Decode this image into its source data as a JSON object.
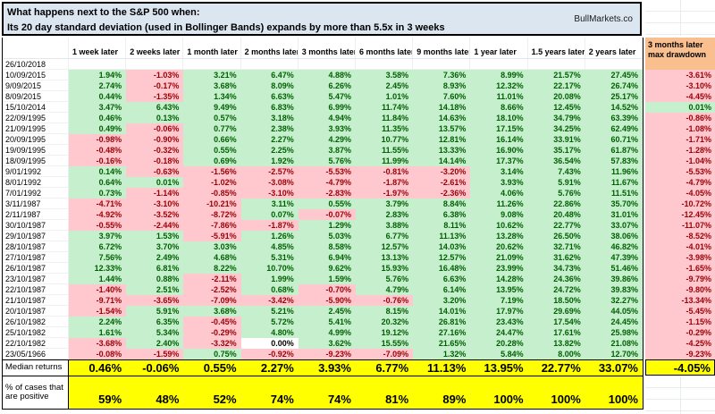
{
  "title": {
    "line1": "What happens next to the S&P 500 when:",
    "line2": "Its 20 day standard deviation (used in Bollinger Bands) expands by more than 5.5x in 3 weeks",
    "brand": "BullMarkets.co"
  },
  "columns": [
    "1 week later",
    "2 weeks later",
    "1 month later",
    "2 months later",
    "3 months later",
    "6 months later",
    "9 months later",
    "1 year later",
    "1.5 years later",
    "2 years later"
  ],
  "drawdown": {
    "header_line1": "3 months later",
    "header_line2": "max drawdown"
  },
  "rows": [
    {
      "date": "26/10/2018",
      "values": [
        "",
        "",
        "",
        "",
        "",
        "",
        "",
        "",
        "",
        ""
      ],
      "drawdown": ""
    },
    {
      "date": "10/09/2015",
      "values": [
        "1.94%",
        "-1.03%",
        "3.21%",
        "6.47%",
        "4.88%",
        "3.58%",
        "7.36%",
        "8.99%",
        "21.57%",
        "27.45%"
      ],
      "drawdown": "-3.61%"
    },
    {
      "date": "9/09/2015",
      "values": [
        "2.74%",
        "-0.17%",
        "3.68%",
        "8.09%",
        "6.26%",
        "2.45%",
        "8.93%",
        "12.32%",
        "22.17%",
        "26.74%"
      ],
      "drawdown": "-3.10%"
    },
    {
      "date": "8/09/2015",
      "values": [
        "0.44%",
        "-1.35%",
        "1.34%",
        "6.63%",
        "5.47%",
        "1.01%",
        "7.60%",
        "11.01%",
        "20.08%",
        "25.17%"
      ],
      "drawdown": "-4.45%"
    },
    {
      "date": "15/10/2014",
      "values": [
        "3.47%",
        "6.43%",
        "9.49%",
        "6.83%",
        "6.99%",
        "11.74%",
        "14.18%",
        "8.66%",
        "12.45%",
        "14.52%"
      ],
      "drawdown": "0.01%"
    },
    {
      "date": "22/09/1995",
      "values": [
        "0.46%",
        "0.13%",
        "0.57%",
        "3.18%",
        "4.94%",
        "11.84%",
        "14.63%",
        "18.10%",
        "34.79%",
        "63.39%"
      ],
      "drawdown": "-0.86%"
    },
    {
      "date": "21/09/1995",
      "values": [
        "0.49%",
        "-0.06%",
        "0.77%",
        "2.38%",
        "3.93%",
        "11.35%",
        "13.57%",
        "17.15%",
        "34.25%",
        "62.49%"
      ],
      "drawdown": "-1.08%"
    },
    {
      "date": "20/09/1995",
      "values": [
        "-0.98%",
        "-0.90%",
        "0.66%",
        "2.27%",
        "4.29%",
        "10.77%",
        "12.81%",
        "16.14%",
        "33.91%",
        "60.71%"
      ],
      "drawdown": "-1.71%"
    },
    {
      "date": "19/09/1995",
      "values": [
        "-0.48%",
        "-0.32%",
        "0.55%",
        "2.25%",
        "3.87%",
        "11.55%",
        "13.33%",
        "16.90%",
        "35.17%",
        "61.87%"
      ],
      "drawdown": "-1.28%"
    },
    {
      "date": "18/09/1995",
      "values": [
        "-0.16%",
        "-0.18%",
        "0.69%",
        "1.92%",
        "5.76%",
        "11.99%",
        "14.14%",
        "17.37%",
        "36.54%",
        "57.83%"
      ],
      "drawdown": "-1.04%"
    },
    {
      "date": "9/01/1992",
      "values": [
        "0.14%",
        "-0.63%",
        "-1.56%",
        "-2.57%",
        "-5.53%",
        "-0.81%",
        "-3.20%",
        "3.14%",
        "7.43%",
        "11.96%"
      ],
      "drawdown": "-5.53%"
    },
    {
      "date": "8/01/1992",
      "values": [
        "0.64%",
        "0.01%",
        "-1.02%",
        "-3.08%",
        "-4.79%",
        "-1.87%",
        "-2.61%",
        "3.93%",
        "5.91%",
        "11.67%"
      ],
      "drawdown": "-4.79%"
    },
    {
      "date": "7/01/1992",
      "values": [
        "0.73%",
        "-1.14%",
        "-0.85%",
        "-3.10%",
        "-2.83%",
        "-1.97%",
        "-2.36%",
        "4.06%",
        "5.76%",
        "11.51%"
      ],
      "drawdown": "-4.05%"
    },
    {
      "date": "3/11/1987",
      "values": [
        "-4.71%",
        "-3.10%",
        "-10.21%",
        "3.11%",
        "0.55%",
        "3.79%",
        "8.84%",
        "11.26%",
        "22.86%",
        "35.70%"
      ],
      "drawdown": "-10.72%"
    },
    {
      "date": "2/11/1987",
      "values": [
        "-4.92%",
        "-3.52%",
        "-8.72%",
        "0.07%",
        "-0.07%",
        "2.83%",
        "6.38%",
        "9.08%",
        "20.48%",
        "31.01%"
      ],
      "drawdown": "-12.45%"
    },
    {
      "date": "30/10/1987",
      "values": [
        "-0.55%",
        "-2.44%",
        "-7.86%",
        "-1.87%",
        "1.29%",
        "3.88%",
        "8.11%",
        "10.62%",
        "22.77%",
        "33.07%"
      ],
      "drawdown": "-11.07%"
    },
    {
      "date": "29/10/1987",
      "values": [
        "3.97%",
        "1.53%",
        "-5.91%",
        "1.26%",
        "5.03%",
        "6.77%",
        "11.13%",
        "13.28%",
        "26.50%",
        "38.06%"
      ],
      "drawdown": "-8.52%"
    },
    {
      "date": "28/10/1987",
      "values": [
        "6.72%",
        "3.70%",
        "3.03%",
        "4.85%",
        "8.58%",
        "12.57%",
        "14.03%",
        "20.62%",
        "32.71%",
        "46.82%"
      ],
      "drawdown": "-4.01%"
    },
    {
      "date": "27/10/1987",
      "values": [
        "7.56%",
        "2.49%",
        "4.68%",
        "5.31%",
        "6.94%",
        "13.13%",
        "12.57%",
        "21.09%",
        "31.62%",
        "47.39%"
      ],
      "drawdown": "-3.98%"
    },
    {
      "date": "26/10/1987",
      "values": [
        "12.33%",
        "6.81%",
        "8.22%",
        "10.70%",
        "9.62%",
        "15.93%",
        "16.48%",
        "23.99%",
        "34.73%",
        "51.46%"
      ],
      "drawdown": "-1.65%"
    },
    {
      "date": "23/10/1987",
      "values": [
        "1.44%",
        "0.88%",
        "-2.11%",
        "1.99%",
        "1.59%",
        "5.76%",
        "6.63%",
        "14.28%",
        "24.36%",
        "39.86%"
      ],
      "drawdown": "-9.79%"
    },
    {
      "date": "22/10/1987",
      "values": [
        "-1.40%",
        "2.51%",
        "-2.52%",
        "0.68%",
        "-0.70%",
        "4.79%",
        "6.14%",
        "13.95%",
        "24.72%",
        "39.83%"
      ],
      "drawdown": "-9.80%"
    },
    {
      "date": "21/10/1987",
      "values": [
        "-9.71%",
        "-3.65%",
        "-7.09%",
        "-3.42%",
        "-5.90%",
        "-0.76%",
        "3.20%",
        "7.19%",
        "18.50%",
        "32.27%"
      ],
      "drawdown": "-13.34%"
    },
    {
      "date": "20/10/1987",
      "values": [
        "-1.54%",
        "5.91%",
        "3.68%",
        "5.21%",
        "2.45%",
        "8.15%",
        "14.01%",
        "17.97%",
        "29.69%",
        "44.05%"
      ],
      "drawdown": "-5.45%"
    },
    {
      "date": "26/10/1982",
      "values": [
        "2.24%",
        "6.35%",
        "-0.45%",
        "5.72%",
        "5.41%",
        "20.32%",
        "26.81%",
        "23.43%",
        "17.54%",
        "24.45%"
      ],
      "drawdown": "-1.15%"
    },
    {
      "date": "25/10/1982",
      "values": [
        "1.61%",
        "5.34%",
        "-0.29%",
        "4.80%",
        "4.99%",
        "19.12%",
        "27.16%",
        "24.47%",
        "17.61%",
        "25.98%"
      ],
      "drawdown": "-0.29%"
    },
    {
      "date": "22/10/1982",
      "values": [
        "-3.68%",
        "2.40%",
        "-3.32%",
        "0.00%",
        "3.62%",
        "15.55%",
        "21.65%",
        "20.28%",
        "13.82%",
        "21.08%"
      ],
      "drawdown": "-4.25%"
    },
    {
      "date": "23/05/1966",
      "values": [
        "-0.08%",
        "-1.59%",
        "0.75%",
        "-0.92%",
        "-9.23%",
        "-7.09%",
        "1.32%",
        "5.84%",
        "8.00%",
        "12.70%"
      ],
      "drawdown": "-9.23%"
    }
  ],
  "summary": {
    "median_label": "Median returns",
    "median_values": [
      "0.46%",
      "-0.06%",
      "0.55%",
      "2.27%",
      "3.93%",
      "6.77%",
      "11.13%",
      "13.95%",
      "22.77%",
      "33.07%"
    ],
    "median_drawdown": "-4.05%",
    "pct_label_line1": "% of cases that",
    "pct_label_line2": "are positive",
    "pct_values": [
      "59%",
      "48%",
      "52%",
      "74%",
      "74%",
      "81%",
      "89%",
      "100%",
      "100%",
      "100%"
    ]
  },
  "colors": {
    "positive_bg": "#c6efce",
    "positive_text": "#006100",
    "negative_bg": "#ffc7ce",
    "negative_text": "#9c0006",
    "title_bg": "#dce6f1",
    "drawdown_header_bg": "#fabf8f",
    "summary_bg": "#ffff00"
  }
}
